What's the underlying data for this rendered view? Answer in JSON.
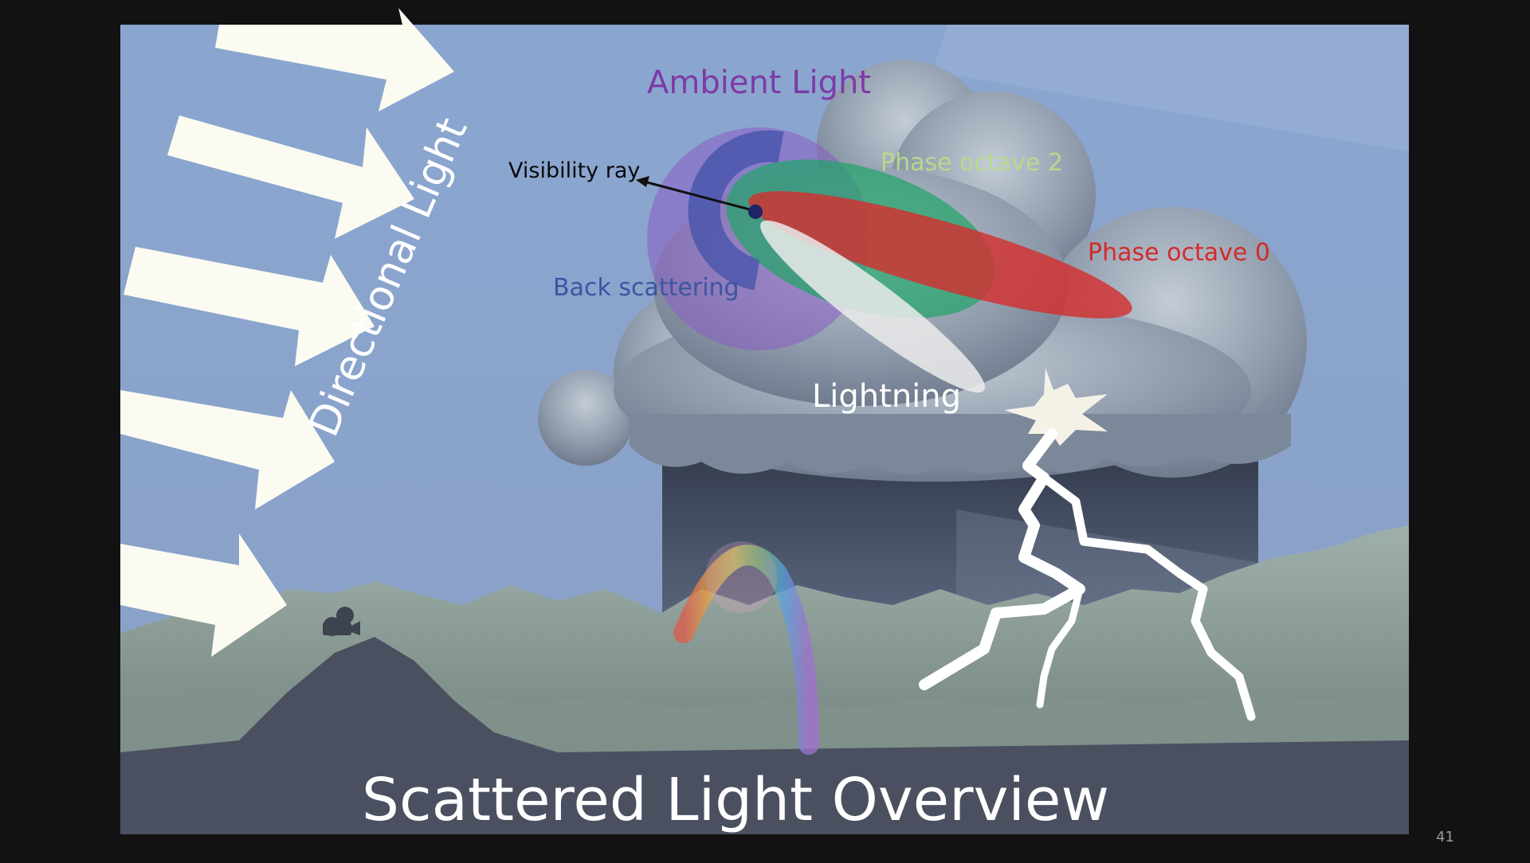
{
  "slide": {
    "title": "Scattered Light Overview",
    "page_number": "41"
  },
  "labels": {
    "ambient_light": "Ambient Light",
    "visibility_ray": "Visibility ray",
    "phase_octave_2": "Phase octave 2",
    "phase_octave_0": "Phase octave 0",
    "back_scattering": "Back scattering",
    "lightning": "Lightning",
    "directional_light": "Directional Light"
  },
  "colors": {
    "sky": "#8aa3cb",
    "ambient": "#8a5cc4",
    "back_scattering": "#3d4fa8",
    "phase_octave_2": "#23a36a",
    "phase_octave_0": "#d32f2f",
    "lightning_lobe": "#e6e6e6",
    "arrows": "#fbfbf1",
    "ground": "#4a5060",
    "mountains": "#93a39f"
  }
}
